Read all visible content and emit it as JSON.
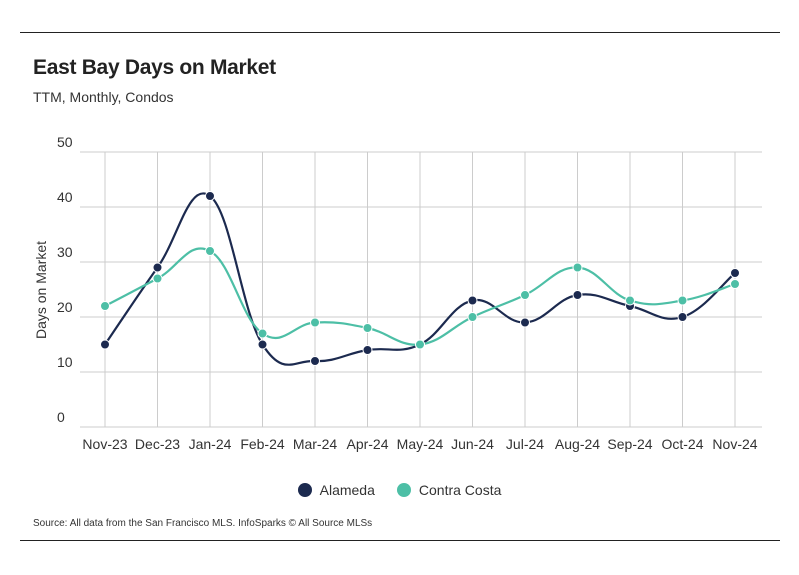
{
  "header": {
    "title": "East Bay Days on Market",
    "subtitle": "TTM, Monthly, Condos"
  },
  "source": "Source:  All data from the San Francisco MLS. InfoSparks © All Source MLSs",
  "colors": {
    "alameda": "#1c2a4f",
    "contra_costa": "#4dbfa6",
    "grid": "#cccccc"
  },
  "chart_data": {
    "type": "line",
    "title": "East Bay Days on Market",
    "subtitle": "TTM, Monthly, Condos",
    "xlabel": "",
    "ylabel": "Days on Market",
    "ylim": [
      0,
      50
    ],
    "yticks": [
      0,
      10,
      20,
      30,
      40,
      50
    ],
    "grid": true,
    "legend": "bottom-center",
    "categories": [
      "Nov-23",
      "Dec-23",
      "Jan-24",
      "Feb-24",
      "Mar-24",
      "Apr-24",
      "May-24",
      "Jun-24",
      "Jul-24",
      "Aug-24",
      "Sep-24",
      "Oct-24",
      "Nov-24"
    ],
    "series": [
      {
        "name": "Alameda",
        "values": [
          15,
          29,
          42,
          15,
          12,
          14,
          15,
          23,
          19,
          24,
          22,
          20,
          28
        ]
      },
      {
        "name": "Contra Costa",
        "values": [
          22,
          27,
          32,
          17,
          19,
          18,
          15,
          20,
          24,
          29,
          23,
          23,
          26
        ]
      }
    ]
  }
}
